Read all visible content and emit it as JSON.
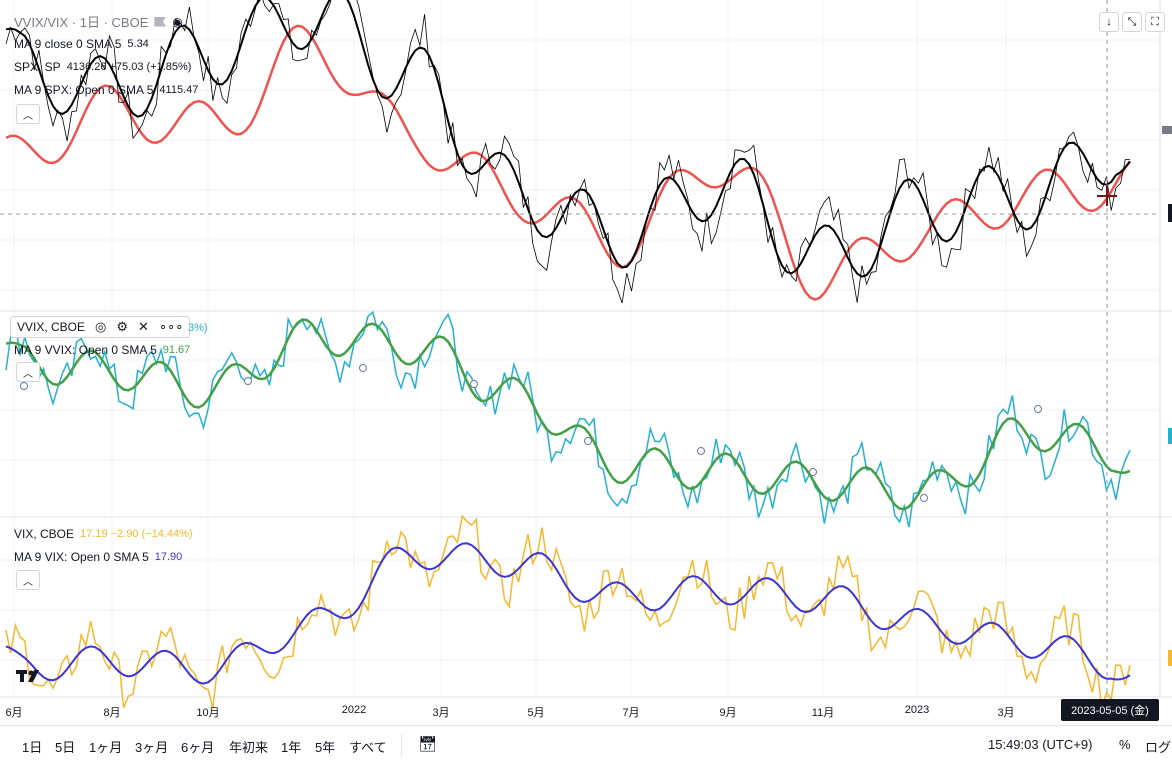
{
  "header": {
    "symbol_title": "VVIX/VIX · 1日 · CBOE"
  },
  "legends": {
    "pane1": [
      {
        "label": "MA 9 close 0 SMA 5",
        "value": "5.34"
      },
      {
        "label": "SPX, SP",
        "value": "4136.26  +75.03 (+1.85%)"
      },
      {
        "label": "MA 9 SPX: Open 0 SMA 5",
        "value": "4115.47"
      }
    ],
    "pane2": [
      {
        "label": "VVIX, CBOE",
        "value": "3%)"
      },
      {
        "label": "MA 9 VVIX: Open 0 SMA 5",
        "value": "91.67"
      }
    ],
    "pane3": [
      {
        "label": "VIX, CBOE",
        "value": "17.19  −2.90 (−14.44%)"
      },
      {
        "label": "MA 9 VIX: Open 0 SMA 5",
        "value": "17.90"
      }
    ]
  },
  "xaxis": {
    "labels": [
      "6月",
      "8月",
      "10月",
      "2022",
      "3月",
      "5月",
      "7月",
      "9月",
      "11月",
      "2023",
      "3月"
    ],
    "crosshair_date": "2023-05-05 (金)"
  },
  "bottom_bar": {
    "ranges": [
      "1日",
      "5日",
      "1ヶ月",
      "3ヶ月",
      "6ヶ月",
      "年初来",
      "1年",
      "5年",
      "すべて"
    ],
    "time": "15:49:03 (UTC+9)",
    "percent": "%",
    "log": "ログ"
  },
  "colors": {
    "vvix_vix": "#131722",
    "ma_black": "#000000",
    "spx_ma": "#ef5350",
    "vvix": "#26b0d0",
    "vvix_ma": "#43a047",
    "vix": "#f5b82e",
    "vix_ma": "#3b35d6",
    "marker_red": "#7a1010"
  },
  "icons": {
    "eye": "eye-icon",
    "settings": "gear-icon",
    "close": "close-icon",
    "more": "more-icon",
    "collapse": "chevron-up-icon",
    "compare": "calendar-icon"
  },
  "chart_data": [
    {
      "type": "line",
      "title": "VVIX/VIX · 1日 · CBOE",
      "x": [
        "2021-06",
        "2021-08",
        "2021-10",
        "2022-01",
        "2022-03",
        "2022-05",
        "2022-07",
        "2022-09",
        "2022-11",
        "2023-01",
        "2023-03",
        "2023-05"
      ],
      "series": [
        {
          "name": "VVIX/VIX",
          "values": [
            5.9,
            5.7,
            6.0,
            6.3,
            5.8,
            4.9,
            4.6,
            5.0,
            4.4,
            4.8,
            4.9,
            5.3
          ]
        },
        {
          "name": "MA 9 close 0 SMA 5",
          "values": [
            5.8,
            5.8,
            5.9,
            6.2,
            5.7,
            4.9,
            4.7,
            4.9,
            4.5,
            4.8,
            4.9,
            5.34
          ]
        },
        {
          "name": "MA 9 SPX: Open 0 SMA 5",
          "values": [
            4200,
            4420,
            4350,
            4700,
            4300,
            4050,
            3850,
            4200,
            3700,
            3900,
            4050,
            4115.47
          ]
        }
      ]
    },
    {
      "type": "line",
      "title": "VVIX, CBOE",
      "x": [
        "2021-06",
        "2021-08",
        "2021-10",
        "2022-01",
        "2022-03",
        "2022-05",
        "2022-07",
        "2022-09",
        "2022-11",
        "2023-01",
        "2023-03",
        "2023-05"
      ],
      "series": [
        {
          "name": "VVIX",
          "values": [
            120,
            118,
            112,
            128,
            125,
            110,
            90,
            88,
            85,
            82,
            100,
            93
          ]
        },
        {
          "name": "MA 9 VVIX: Open 0 SMA 5",
          "values": [
            118,
            117,
            114,
            126,
            123,
            112,
            92,
            89,
            86,
            83,
            97,
            91.67
          ]
        }
      ]
    },
    {
      "type": "line",
      "title": "VIX, CBOE",
      "x": [
        "2021-06",
        "2021-08",
        "2021-10",
        "2022-01",
        "2022-03",
        "2022-05",
        "2022-07",
        "2022-09",
        "2022-11",
        "2023-01",
        "2023-03",
        "2023-05"
      ],
      "series": [
        {
          "name": "VIX",
          "values": [
            17,
            18,
            17,
            22,
            30,
            29,
            25,
            26,
            25,
            22,
            20,
            17.19
          ]
        },
        {
          "name": "MA 9 VIX: Open 0 SMA 5",
          "values": [
            18,
            17.5,
            17.5,
            21,
            29,
            28,
            26,
            27,
            26,
            21,
            21,
            17.9
          ]
        }
      ]
    }
  ]
}
